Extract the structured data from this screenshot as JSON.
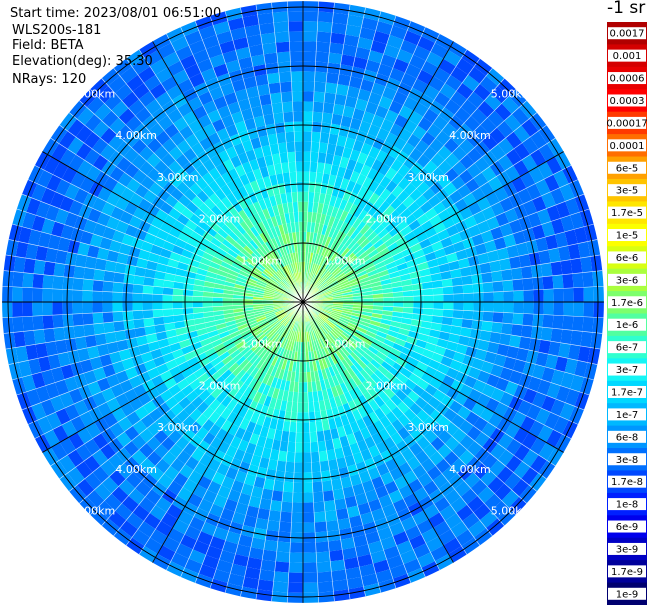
{
  "header": {
    "start_time": "Start time: 2023/08/01 06:51:00",
    "device": "WLS200s-181",
    "field": "Field: BETA",
    "elevation": "Elevation(deg): 35.30",
    "nrays": "NRays: 120"
  },
  "colorbar": {
    "unit_title": "-1 sr",
    "labels": [
      "0.0017",
      "0.001",
      "0.0006",
      "0.0003",
      "0.00017",
      "0.0001",
      "6e-5",
      "3e-5",
      "1.7e-5",
      "1e-5",
      "6e-6",
      "3e-6",
      "1.7e-6",
      "1e-6",
      "6e-7",
      "3e-7",
      "1.7e-7",
      "1e-7",
      "6e-8",
      "3e-8",
      "1.7e-8",
      "1e-8",
      "6e-9",
      "3e-9",
      "1.7e-9",
      "1e-9"
    ],
    "colors": [
      "#b00000",
      "#d40000",
      "#e80000",
      "#ff0000",
      "#ff3a00",
      "#ff6e00",
      "#ffa000",
      "#ffc400",
      "#ffe600",
      "#fcff00",
      "#d8ff12",
      "#aaff3e",
      "#7dff6c",
      "#52ffa0",
      "#30ffcf",
      "#14f5f5",
      "#00d8ff",
      "#00b8ff",
      "#0096ff",
      "#0070ff",
      "#0048ff",
      "#0020ff",
      "#0000ec",
      "#0000c4",
      "#00009a",
      "#000070"
    ]
  },
  "chart_data": {
    "type": "heatmap",
    "projection": "polar (PPI scan)",
    "elevation_deg": 35.3,
    "n_rays": 120,
    "range_unit": "km",
    "range_rings_km": [
      1,
      2,
      3,
      4,
      5
    ],
    "ring_labels": [
      "1.00km",
      "2.00km",
      "3.00km",
      "4.00km",
      "5.00km"
    ],
    "max_range_km": 5.1,
    "radial_lines_deg": [
      0,
      30,
      60,
      90,
      120,
      150,
      180,
      210,
      240,
      270,
      300,
      330
    ],
    "color_scale": "log",
    "value_range": [
      1e-09,
      0.0017
    ],
    "radial_profile": {
      "range_km": [
        0.0,
        0.5,
        1.0,
        1.5,
        2.0,
        2.5,
        3.0,
        3.5,
        4.0,
        4.5,
        5.0
      ],
      "beta": [
        1.7e-06,
        1.7e-06,
        1e-06,
        6e-07,
        3e-07,
        1.7e-07,
        1e-07,
        6e-08,
        4e-08,
        3e-08,
        3e-08
      ]
    }
  }
}
